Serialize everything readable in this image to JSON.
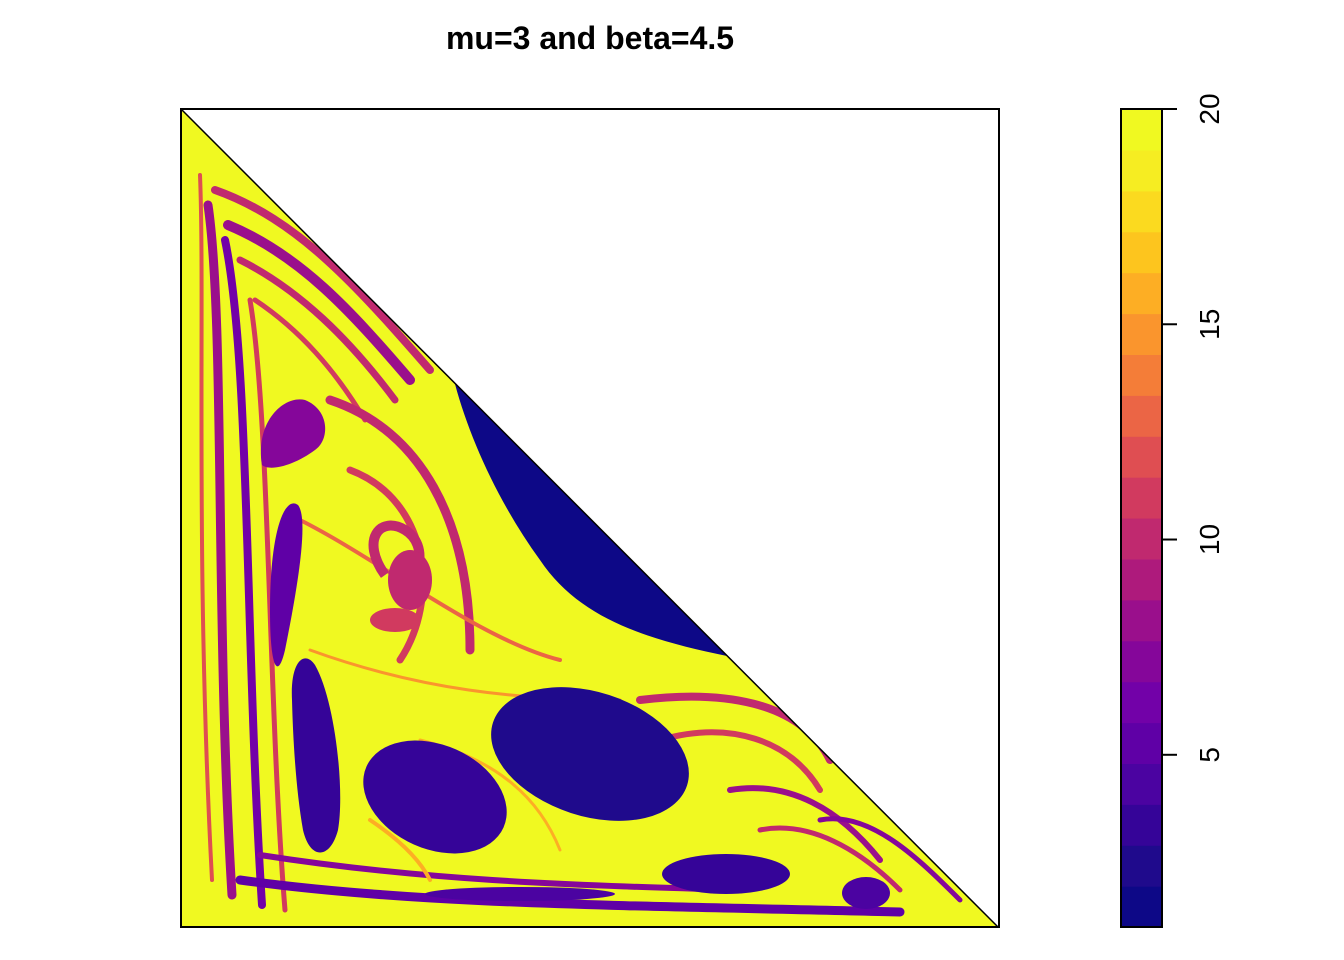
{
  "chart_data": {
    "type": "heatmap",
    "title": "mu=3 and beta=4.5",
    "xlabel": "",
    "ylabel": "",
    "domain": "lower-left triangle (x + y <= 1)",
    "colorbar": {
      "min": 1,
      "max": 20,
      "levels": 20,
      "ticks": [
        5,
        10,
        15,
        20
      ],
      "tick_labels": [
        "5",
        "10",
        "15",
        "20"
      ],
      "palette": [
        "#0D0887",
        "#1F0A8C",
        "#350498",
        "#4B03A1",
        "#5F00A6",
        "#7201A8",
        "#85069A",
        "#9A0F8C",
        "#AE1A7C",
        "#C0296F",
        "#D13A5F",
        "#DF4E52",
        "#EB6545",
        "#F47D38",
        "#FA952D",
        "#FDAE24",
        "#FDC51E",
        "#FBDA1F",
        "#F6ED22",
        "#F0F921"
      ]
    },
    "features": [
      {
        "name": "background",
        "value": 20
      },
      {
        "name": "upper-right lobe",
        "value": 1
      },
      {
        "name": "central ellipse",
        "value": 2
      },
      {
        "name": "lower-left ellipse",
        "value": 3
      },
      {
        "name": "bottom ellipse",
        "value": 3
      },
      {
        "name": "corner ellipse",
        "value": 4
      },
      {
        "name": "left elongated lobe",
        "value": 5
      },
      {
        "name": "upper-left lobe",
        "value": 7
      },
      {
        "name": "spiral core",
        "value": 10
      }
    ]
  }
}
